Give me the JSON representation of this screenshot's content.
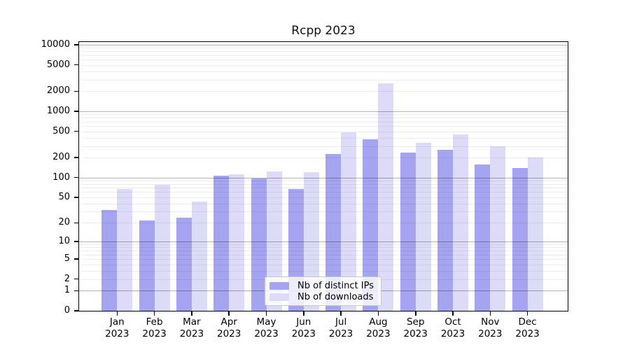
{
  "window": {
    "title": "Rcpp 2023"
  },
  "colors": {
    "background": "#ffffff",
    "axis": "#000000",
    "grid_major": "rgba(0,0,0,0.30)",
    "grid_minor": "rgba(0,0,0,0.07)",
    "legend_bg": "rgba(255,255,255,0.8)",
    "legend_border": "#c9c9c9",
    "series_ips": "#a4a4f1",
    "series_downloads": "#dcdcf8"
  },
  "legend": {
    "items": [
      {
        "label": "Nb of distinct IPs",
        "color": "#a4a4f1"
      },
      {
        "label": "Nb of downloads",
        "color": "#dcdcf8"
      }
    ]
  },
  "chart_data": {
    "type": "bar",
    "title": "Rcpp 2023",
    "xlabel": "",
    "ylabel": "",
    "categories": [
      "Jan",
      "Feb",
      "Mar",
      "Apr",
      "May",
      "Jun",
      "Jul",
      "Aug",
      "Sep",
      "Oct",
      "Nov",
      "Dec"
    ],
    "category_year": "2023",
    "series": [
      {
        "name": "Nb of distinct IPs",
        "color": "#a4a4f1",
        "values": [
          32,
          22,
          24,
          106,
          97,
          67,
          230,
          380,
          237,
          262,
          158,
          138
        ]
      },
      {
        "name": "Nb of downloads",
        "color": "#dcdcf8",
        "values": [
          67,
          78,
          43,
          113,
          124,
          120,
          480,
          2640,
          333,
          452,
          297,
          201
        ]
      }
    ],
    "y_scale": "log1p",
    "ylim": [
      0,
      10760
    ],
    "y_tick_values": [
      0,
      1,
      2,
      5,
      10,
      20,
      50,
      100,
      200,
      500,
      1000,
      2000,
      5000,
      10000
    ],
    "y_tick_labels": [
      "0",
      "1",
      "2",
      "5",
      "10",
      "20",
      "50",
      "100",
      "200",
      "500",
      "1000",
      "2000",
      "5000",
      "10000"
    ],
    "y_major_gridlines": [
      1,
      10,
      100,
      1000,
      10000
    ],
    "grid": "on",
    "legend_position": "inside-bottom-center"
  }
}
